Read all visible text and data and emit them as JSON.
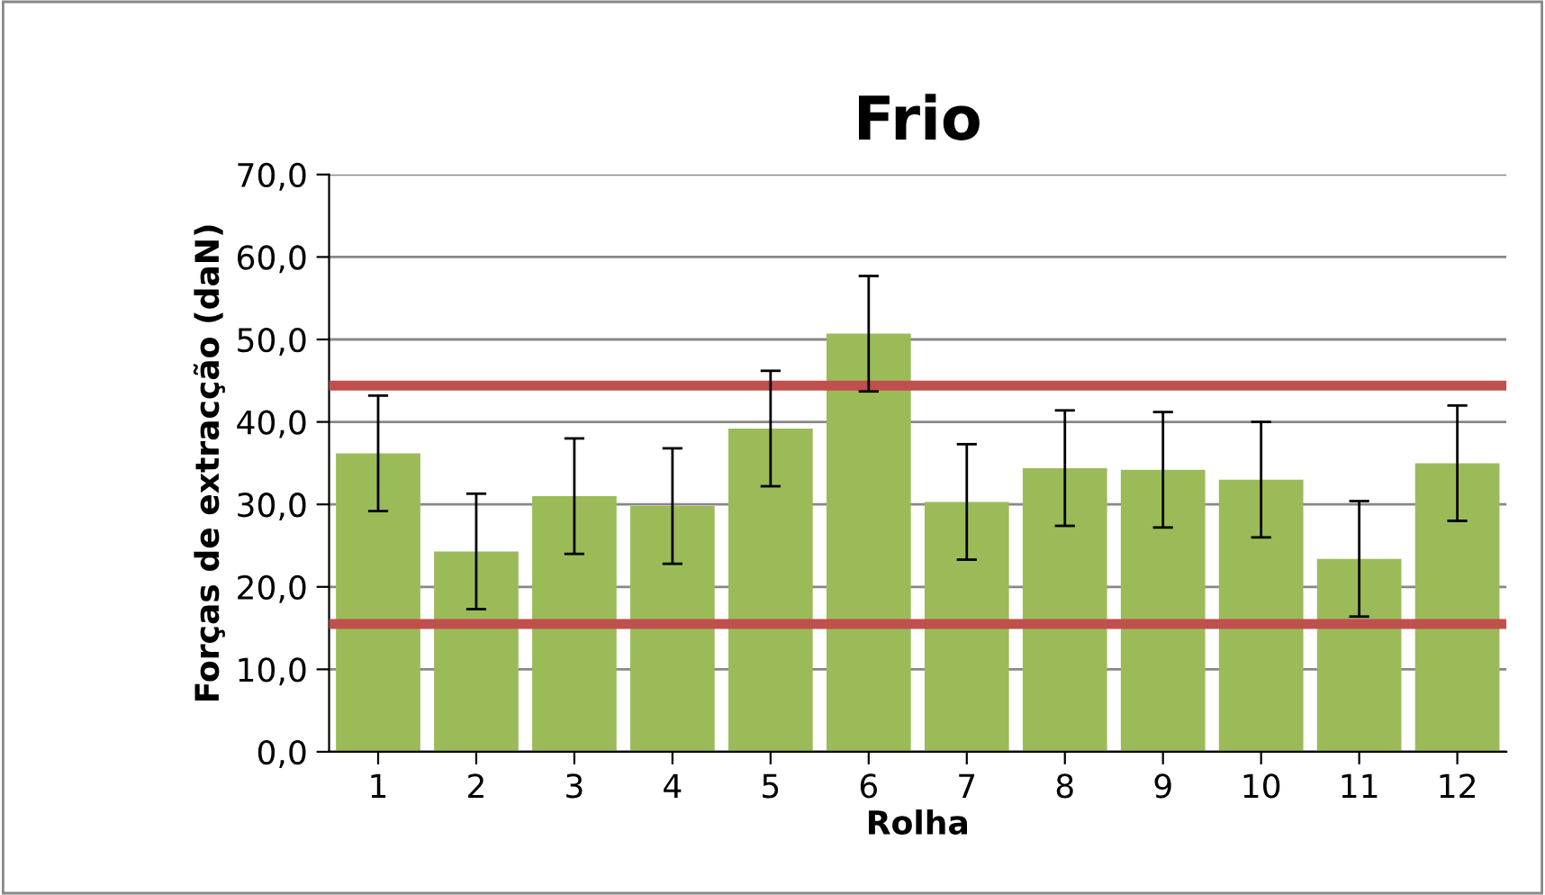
{
  "chart_data": {
    "type": "bar",
    "title": "Frio",
    "xlabel": "Rolha",
    "ylabel": "Forças de extracção (daN)",
    "categories": [
      "1",
      "2",
      "3",
      "4",
      "5",
      "6",
      "7",
      "8",
      "9",
      "10",
      "11",
      "12"
    ],
    "values": [
      36.2,
      24.3,
      31.0,
      29.8,
      39.2,
      50.7,
      30.3,
      34.4,
      34.2,
      33.0,
      23.4,
      35.0
    ],
    "errors": [
      7.0,
      7.0,
      7.0,
      7.0,
      7.0,
      7.0,
      7.0,
      7.0,
      7.0,
      7.0,
      7.0,
      7.0
    ],
    "color": "#9bbb59",
    "ylim": [
      0,
      70
    ],
    "yticks": [
      {
        "value": 0,
        "label": "0,0"
      },
      {
        "value": 10,
        "label": "10,0"
      },
      {
        "value": 20,
        "label": "20,0"
      },
      {
        "value": 30,
        "label": "30,0"
      },
      {
        "value": 40,
        "label": "40,0"
      },
      {
        "value": 50,
        "label": "50,0"
      },
      {
        "value": 60,
        "label": "60,0"
      },
      {
        "value": 70,
        "label": "70,0"
      }
    ],
    "grid": "y",
    "ref_lines": [
      {
        "axis": "y",
        "value": 44.4,
        "color": "#c0504d"
      },
      {
        "axis": "y",
        "value": 15.5,
        "color": "#c0504d"
      }
    ]
  }
}
